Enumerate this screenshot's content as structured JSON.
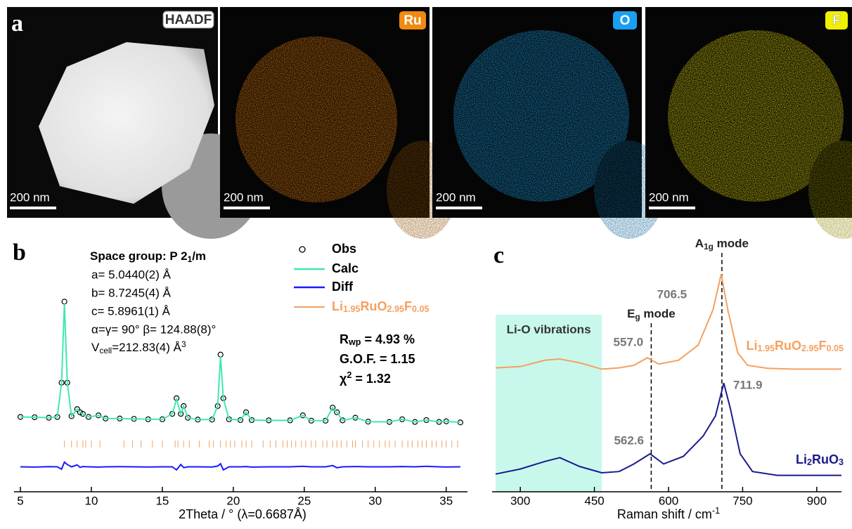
{
  "panel_a": {
    "label": "a",
    "images": [
      {
        "tag": "HAADF",
        "scale_bar": "200 nm"
      },
      {
        "tag": "Ru",
        "scale_bar": "200 nm"
      },
      {
        "tag": "O",
        "scale_bar": "200 nm"
      },
      {
        "tag": "F",
        "scale_bar": "200 nm"
      }
    ]
  },
  "chart_data": [
    {
      "type": "line",
      "panel_label": "b",
      "text_block": [
        [
          "Space group: P 2",
          {
            "sub": "1"
          },
          "/m"
        ],
        "a= 5.0440(2) Å",
        "b= 8.7245(4) Å",
        "c= 5.8961(1) Å",
        "α=γ= 90° β= 124.88(8)°",
        [
          "V",
          {
            "sub": "cell"
          },
          "=212.83(4) Å",
          {
            "sup": "3"
          }
        ]
      ],
      "fit_stats": [
        [
          "R",
          {
            "sub": "wp"
          },
          " = 4.93 %"
        ],
        "G.O.F. = 1.15",
        [
          "χ",
          {
            "sup": "2"
          },
          " = 1.32"
        ]
      ],
      "x_label": "2Theta / ° (λ=0.6687Å)",
      "xlim": [
        4.8,
        36.5
      ],
      "xticks": [
        5,
        10,
        15,
        20,
        25,
        30,
        35
      ],
      "ylim": [
        -40,
        120
      ],
      "x": [
        5,
        6,
        7,
        7.6,
        7.9,
        8.1,
        8.3,
        8.6,
        9.0,
        9.2,
        9.4,
        9.8,
        10.5,
        11,
        12,
        13,
        14,
        15,
        15.7,
        16.0,
        16.3,
        16.5,
        16.8,
        17.5,
        18.5,
        18.9,
        19.1,
        19.3,
        19.7,
        20.5,
        20.9,
        21.3,
        22.5,
        24,
        24.9,
        25.5,
        26.5,
        27.0,
        27.3,
        27.7,
        28.6,
        29.5,
        31,
        31.9,
        32.8,
        33.6,
        34.5,
        35,
        36
      ],
      "series": [
        {
          "name": "Obs",
          "style": "markers",
          "color": "#000000",
          "values": [
            8,
            7.8,
            7.5,
            8,
            30,
            82,
            30,
            8.5,
            13,
            11,
            10,
            8,
            9,
            7,
            7,
            6.8,
            6.5,
            6.5,
            10,
            20,
            10,
            15,
            7.5,
            6.3,
            6.3,
            15,
            48,
            20,
            6.5,
            6,
            11,
            6,
            5.8,
            5.8,
            9,
            5.6,
            5.6,
            14,
            11,
            5.8,
            7.5,
            5,
            4.8,
            6.5,
            4.8,
            6,
            4.8,
            5.2,
            4.5
          ]
        },
        {
          "name": "Calc",
          "style": "line",
          "color": "#40e8b0",
          "values": [
            8,
            7.8,
            7.5,
            8,
            30,
            81,
            30,
            8.5,
            13,
            11,
            10,
            8,
            9,
            7,
            7,
            6.8,
            6.5,
            6.5,
            10,
            19.5,
            10,
            15,
            7.5,
            6.3,
            6.3,
            15,
            47,
            20,
            6.5,
            6,
            11,
            6,
            5.8,
            5.8,
            9,
            5.6,
            5.6,
            14,
            11,
            5.8,
            7.5,
            5,
            4.8,
            6.5,
            4.8,
            6,
            4.8,
            5.2,
            4.5
          ]
        },
        {
          "name": "Diff",
          "style": "line",
          "color": "#1a1aff",
          "values": [
            -24,
            -24.2,
            -23.9,
            -24,
            -25.5,
            -21,
            -22.5,
            -24,
            -22.8,
            -24.3,
            -23.8,
            -24,
            -24.2,
            -24,
            -23.9,
            -24,
            -24.1,
            -24,
            -24,
            -26,
            -22.5,
            -24.5,
            -24,
            -24,
            -24.1,
            -23.5,
            -22,
            -26,
            -24,
            -24,
            -23.8,
            -24.2,
            -24,
            -24,
            -23.7,
            -24,
            -24,
            -23.2,
            -24.6,
            -24,
            -23.8,
            -24,
            -24,
            -23.8,
            -24,
            -23.7,
            -24,
            -24.1,
            -24
          ]
        }
      ],
      "reflections": {
        "name": [
          "Li",
          {
            "sub": "1.95"
          },
          "RuO",
          {
            "sub": "2.95"
          },
          "F",
          {
            "sub": "0.05"
          }
        ],
        "color": "#f5a060",
        "level": -9.4,
        "x": [
          8.1,
          8.6,
          9.0,
          9.4,
          9.6,
          10.0,
          10.6,
          12.3,
          12.9,
          13.5,
          14.3,
          15.0,
          15.9,
          16.1,
          16.5,
          16.9,
          17.6,
          18.3,
          18.6,
          19.1,
          19.5,
          19.8,
          20.1,
          20.6,
          20.9,
          21.3,
          22.1,
          22.6,
          23.0,
          23.5,
          23.8,
          24.1,
          24.4,
          24.8,
          25.1,
          25.5,
          25.8,
          26.3,
          26.6,
          27.0,
          27.3,
          27.6,
          28.0,
          28.4,
          28.6,
          29.1,
          29.5,
          29.9,
          30.3,
          30.7,
          31.0,
          31.4,
          31.9,
          32.3,
          32.6,
          33.0,
          33.3,
          33.6,
          34.0,
          34.3,
          34.7,
          35.0,
          35.4,
          35.8
        ]
      }
    },
    {
      "type": "line",
      "panel_label": "c",
      "x_label": [
        "Raman shift / cm",
        {
          "sup": "-1"
        }
      ],
      "xlim": [
        250,
        950
      ],
      "xticks": [
        300,
        450,
        600,
        750,
        900
      ],
      "ylim": [
        0,
        100
      ],
      "band": {
        "range": [
          250,
          465
        ],
        "label": "Li-O vibrations",
        "color": "#c8f8ec"
      },
      "mode_lines": [
        {
          "x": 708,
          "label": [
            "A",
            {
              "sub": "1g"
            },
            " mode"
          ]
        },
        {
          "x": 565,
          "label": [
            "E",
            {
              "sub": "g"
            },
            " mode"
          ]
        }
      ],
      "series": [
        {
          "name": [
            "Li",
            {
              "sub": "1.95"
            },
            "RuO",
            {
              "sub": "2.95"
            },
            "F",
            {
              "sub": "0.05"
            }
          ],
          "color": "#f5a060",
          "x": [
            250,
            300,
            350,
            380,
            420,
            465,
            500,
            530,
            557,
            580,
            620,
            660,
            690,
            706.5,
            720,
            740,
            760,
            800,
            850,
            950
          ],
          "values": [
            49,
            49.5,
            52,
            52.5,
            51,
            48.5,
            49,
            50,
            53,
            50.5,
            52,
            58,
            72,
            86,
            72,
            55,
            50,
            48.8,
            48.5,
            48.5
          ],
          "peak_labels": [
            {
              "value": 557.0,
              "label": "557.0"
            },
            706.5
          ]
        },
        {
          "name": [
            "Li",
            {
              "sub": "2"
            },
            "RuO",
            {
              "sub": "3"
            }
          ],
          "color": "#1a1a8c",
          "x": [
            250,
            300,
            350,
            380,
            420,
            465,
            500,
            530,
            562.6,
            590,
            630,
            670,
            695,
            711.9,
            725,
            745,
            770,
            820,
            950
          ],
          "values": [
            7,
            9,
            12,
            13.5,
            10,
            7.5,
            8,
            11,
            15,
            11,
            14,
            22,
            30,
            43,
            33,
            15,
            8,
            6.5,
            6.5
          ],
          "peak_labels": [
            562.6,
            711.9
          ]
        }
      ]
    }
  ]
}
